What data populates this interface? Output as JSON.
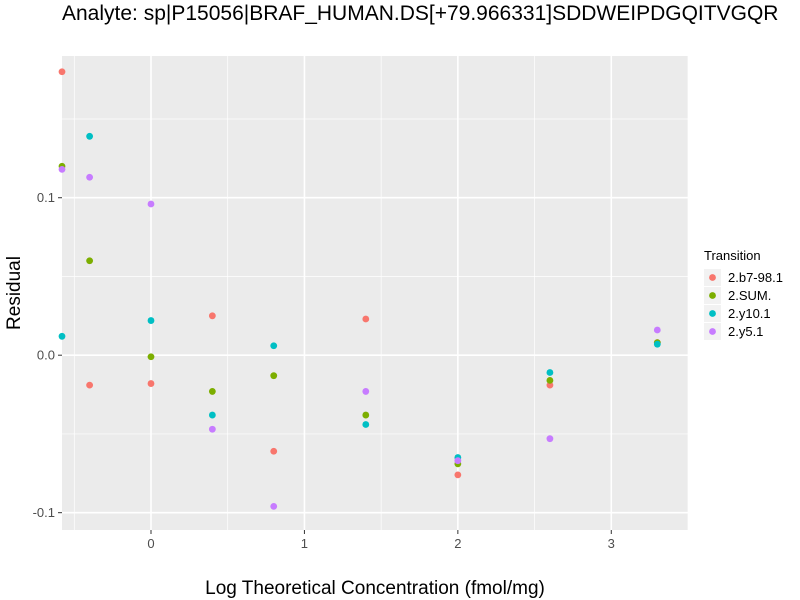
{
  "chart_data": {
    "type": "scatter",
    "title": "Analyte: sp|P15056|BRAF_HUMAN.DS[+79.966331]SDDWEIPDGQITVGQR",
    "xlabel": "Log Theoretical Concentration (fmol/mg)",
    "ylabel": "Residual",
    "xlim": [
      -0.58,
      3.5
    ],
    "ylim": [
      -0.111,
      0.19
    ],
    "x_ticks": [
      0,
      1,
      2,
      3
    ],
    "y_ticks": [
      -0.1,
      0.0,
      0.1
    ],
    "y_tick_labels": [
      "-0.1",
      "0.0",
      "0.1"
    ],
    "grid": true,
    "legend": {
      "title": "Transition",
      "position": "right"
    },
    "series": [
      {
        "name": "2.b7-98.1",
        "color": "#F8766D",
        "x": [
          -0.58,
          -0.4,
          0.0,
          0.4,
          0.8,
          1.4,
          2.0,
          2.6,
          3.3
        ],
        "y": [
          0.18,
          -0.019,
          -0.018,
          0.025,
          -0.061,
          0.023,
          -0.076,
          -0.019,
          0.008
        ]
      },
      {
        "name": "2.SUM.",
        "color": "#7CAE00",
        "x": [
          -0.58,
          -0.4,
          0.0,
          0.4,
          0.8,
          1.4,
          2.0,
          2.6,
          3.3
        ],
        "y": [
          0.12,
          0.06,
          -0.001,
          -0.023,
          -0.013,
          -0.038,
          -0.069,
          -0.016,
          0.008
        ]
      },
      {
        "name": "2.y10.1",
        "color": "#00BFC4",
        "x": [
          -0.58,
          -0.4,
          0.0,
          0.4,
          0.8,
          1.4,
          2.0,
          2.6,
          3.3
        ],
        "y": [
          0.012,
          0.139,
          0.022,
          -0.038,
          0.006,
          -0.044,
          -0.065,
          -0.011,
          0.007
        ]
      },
      {
        "name": "2.y5.1",
        "color": "#C77CFF",
        "x": [
          -0.58,
          -0.4,
          0.0,
          0.4,
          0.8,
          1.4,
          2.0,
          2.6,
          3.3
        ],
        "y": [
          0.118,
          0.113,
          0.096,
          -0.047,
          -0.096,
          -0.023,
          -0.067,
          -0.053,
          0.016
        ]
      }
    ]
  }
}
